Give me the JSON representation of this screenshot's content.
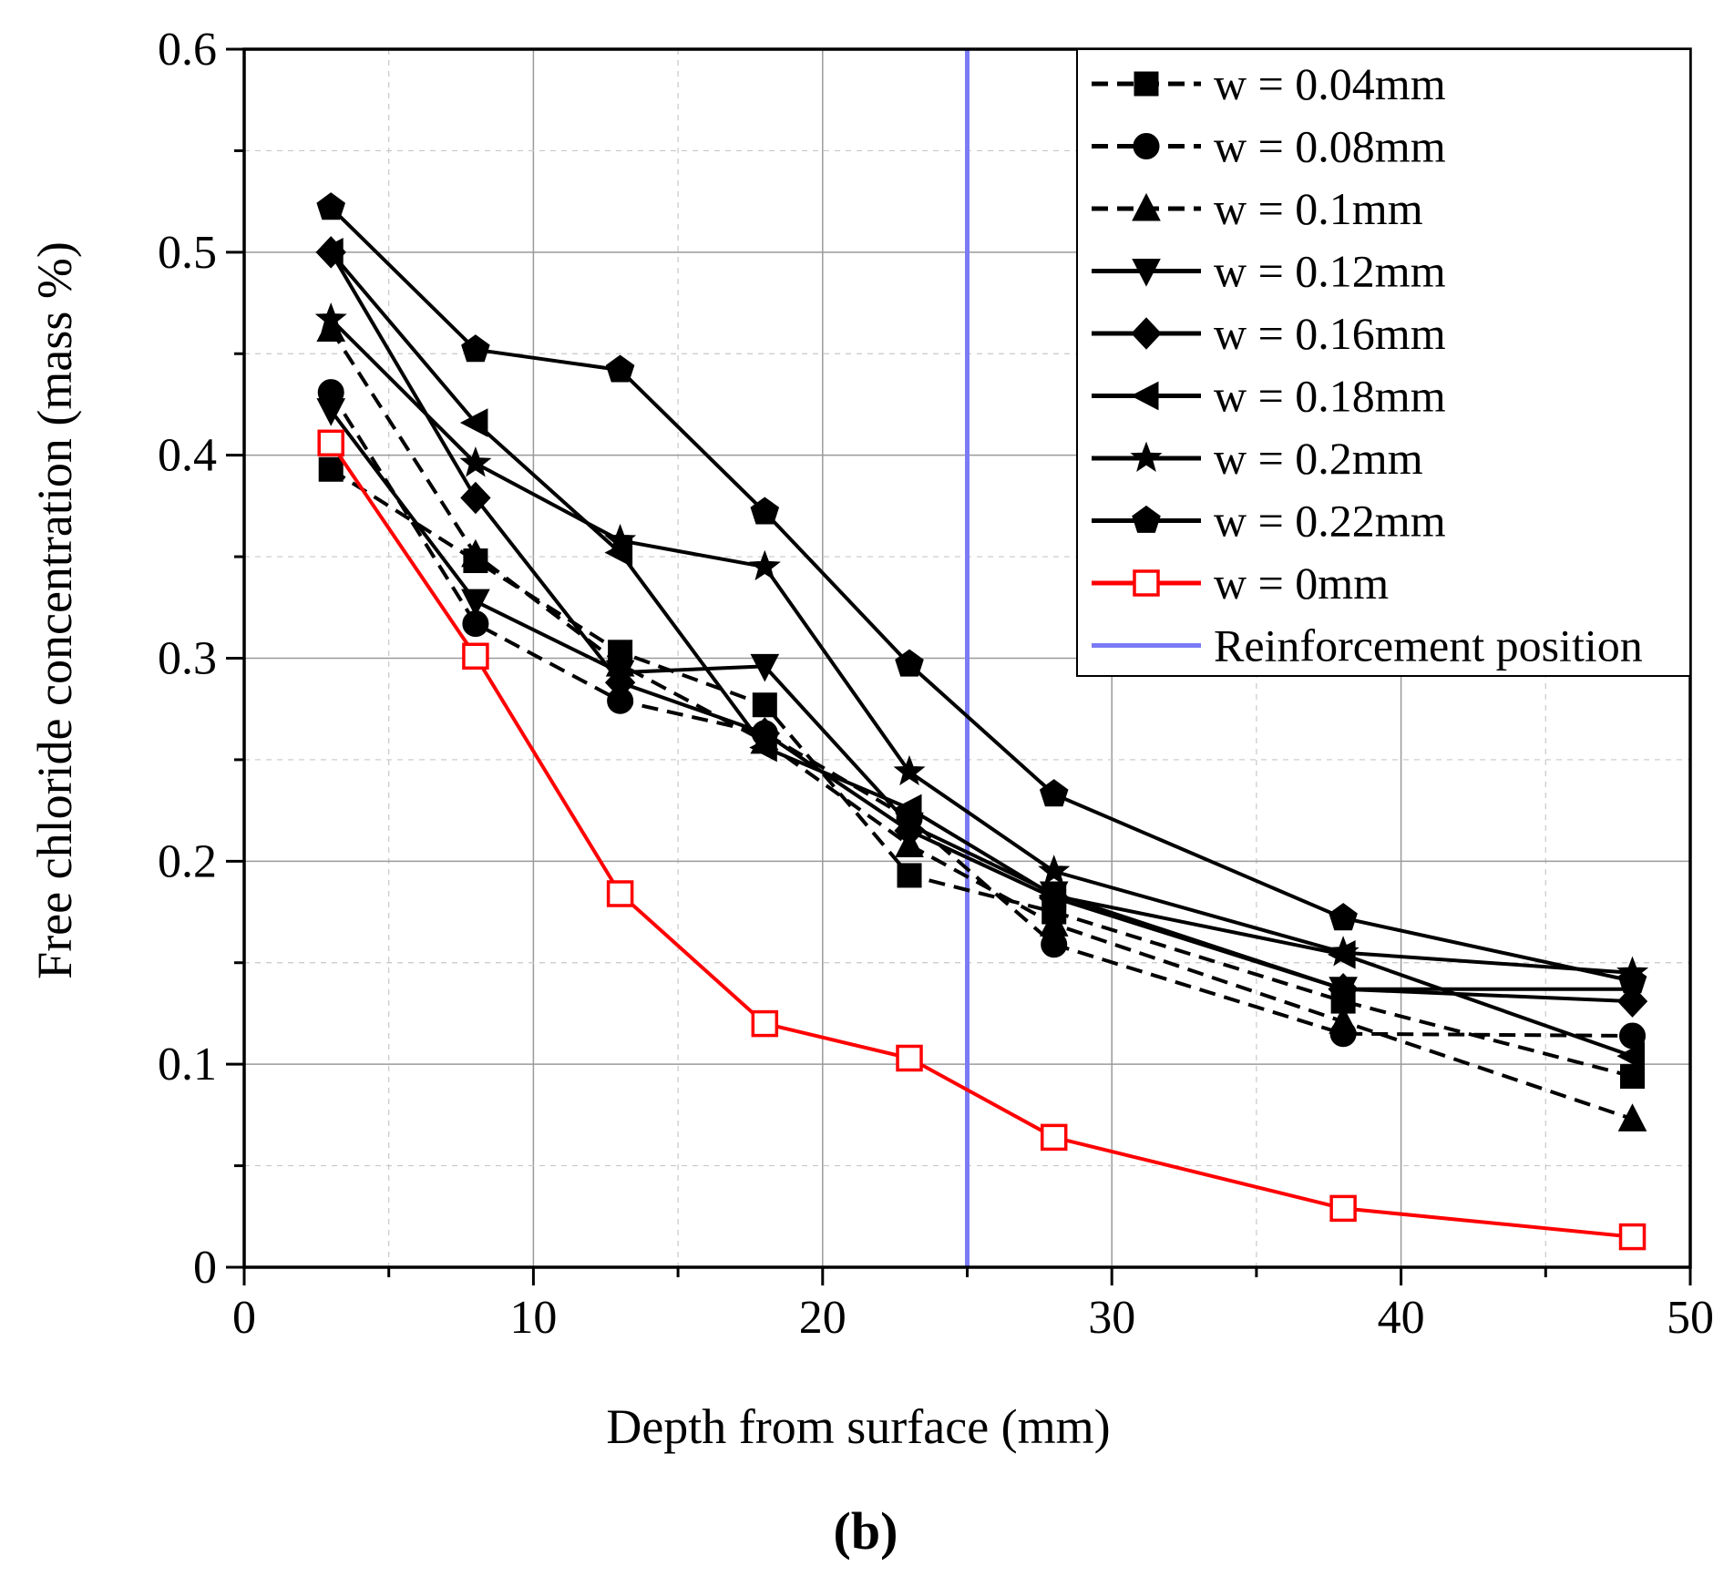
{
  "chart_data": {
    "type": "line",
    "subtitle": "(b)",
    "xlabel": "Depth from surface (mm)",
    "ylabel": "Free chloride concentration (mass %)",
    "xlim": [
      0,
      50
    ],
    "ylim": [
      0,
      0.6
    ],
    "xticks": [
      0,
      10,
      20,
      30,
      40,
      50
    ],
    "xtick_labels": [
      "0",
      "10",
      "20",
      "30",
      "40",
      "50"
    ],
    "yticks": [
      0,
      0.1,
      0.2,
      0.3,
      0.4,
      0.5,
      0.6
    ],
    "ytick_labels": [
      "0",
      "0.1",
      "0.2",
      "0.3",
      "0.4",
      "0.5",
      "0.6"
    ],
    "grid": true,
    "legend_position": "top-right",
    "x": [
      3,
      8,
      13,
      18,
      23,
      28,
      38,
      48
    ],
    "series": [
      {
        "name": "w = 0.04mm",
        "marker": "square",
        "line": "dashed",
        "color": "#000000",
        "values": [
          0.393,
          0.348,
          0.303,
          0.277,
          0.193,
          0.175,
          0.131,
          0.094
        ]
      },
      {
        "name": "w = 0.08mm",
        "marker": "circle",
        "line": "dashed",
        "color": "#000000",
        "values": [
          0.431,
          0.317,
          0.279,
          0.263,
          0.221,
          0.159,
          0.115,
          0.114
        ]
      },
      {
        "name": "w = 0.1mm",
        "marker": "triangle-up",
        "line": "dashed",
        "color": "#000000",
        "values": [
          0.462,
          0.351,
          0.297,
          0.259,
          0.208,
          0.169,
          0.121,
          0.073
        ]
      },
      {
        "name": "w = 0.12mm",
        "marker": "triangle-down",
        "line": "solid",
        "color": "#000000",
        "values": [
          0.422,
          0.328,
          0.293,
          0.296,
          0.218,
          0.184,
          0.137,
          0.137
        ]
      },
      {
        "name": "w = 0.16mm",
        "marker": "diamond",
        "line": "solid",
        "color": "#000000",
        "values": [
          0.5,
          0.379,
          0.288,
          0.263,
          0.215,
          0.182,
          0.137,
          0.131
        ]
      },
      {
        "name": "w = 0.18mm",
        "marker": "triangle-left",
        "line": "solid",
        "color": "#000000",
        "values": [
          0.5,
          0.416,
          0.352,
          0.256,
          0.226,
          0.183,
          0.154,
          0.104
        ]
      },
      {
        "name": "w = 0.2mm",
        "marker": "star",
        "line": "solid",
        "color": "#000000",
        "values": [
          0.467,
          0.396,
          0.358,
          0.345,
          0.244,
          0.195,
          0.155,
          0.145
        ]
      },
      {
        "name": "w = 0.22mm",
        "marker": "pentagon",
        "line": "solid",
        "color": "#000000",
        "values": [
          0.522,
          0.452,
          0.442,
          0.372,
          0.297,
          0.233,
          0.172,
          0.141
        ]
      },
      {
        "name": "w = 0mm",
        "marker": "square-open",
        "line": "solid",
        "color": "#ff0000",
        "values": [
          0.406,
          0.301,
          0.184,
          0.12,
          0.103,
          0.064,
          0.029,
          0.015
        ]
      }
    ],
    "reference_line": {
      "name": "Reinforcement position",
      "x": 25,
      "color": "#7b7bf5"
    }
  }
}
